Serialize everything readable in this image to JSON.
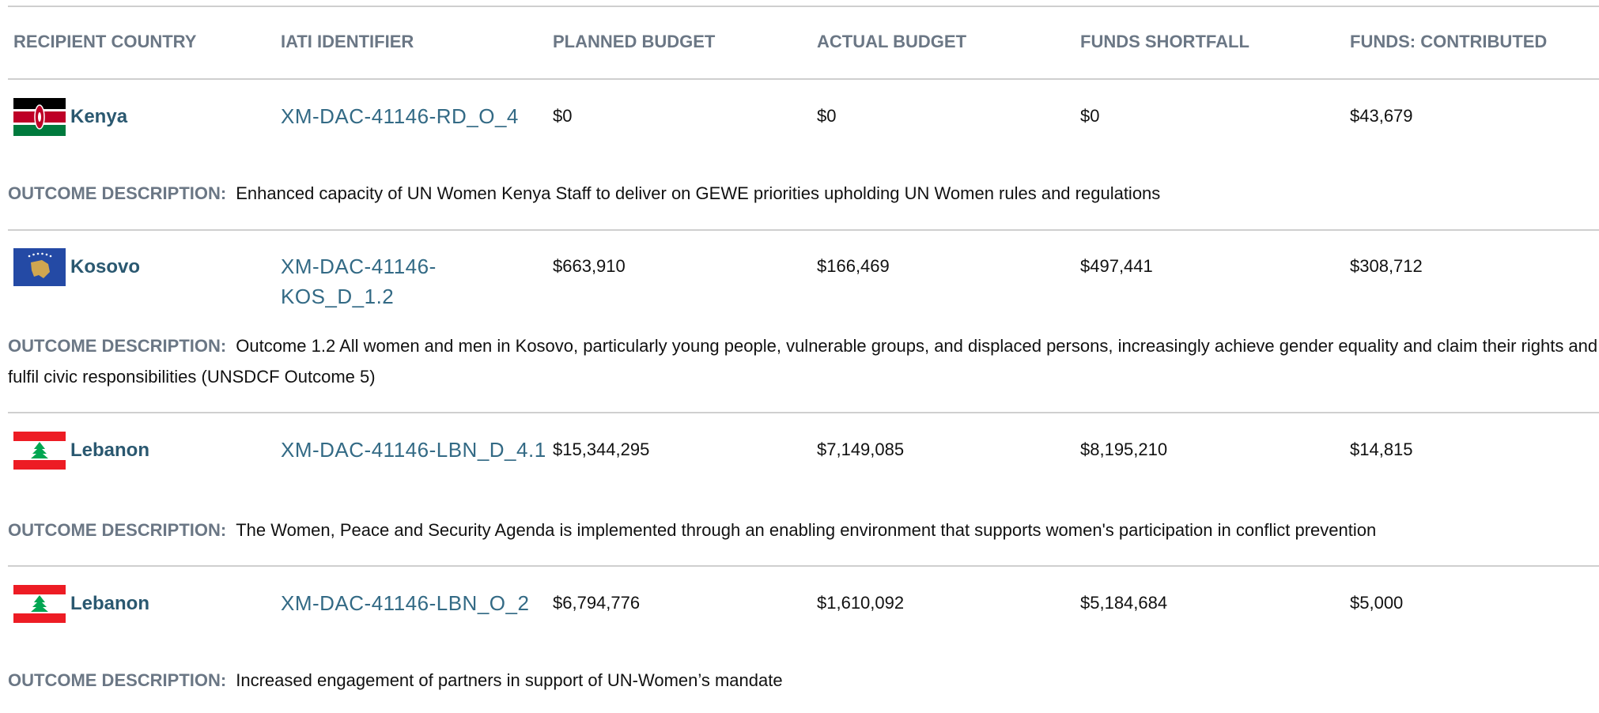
{
  "table": {
    "headers": [
      "RECIPIENT COUNTRY",
      "IATI IDENTIFIER",
      "PLANNED BUDGET",
      "ACTUAL BUDGET",
      "FUNDS SHORTFALL",
      "FUNDS: CONTRIBUTED"
    ],
    "outcome_label": "OUTCOME DESCRIPTION:",
    "rows": [
      {
        "country": "Kenya",
        "identifier": "XM-DAC-41146-RD_O_4",
        "planned": "$0",
        "actual": "$0",
        "shortfall": "$0",
        "contributed": "$43,679",
        "outcome": "Enhanced capacity of UN Women Kenya Staff to deliver on GEWE priorities upholding UN Women rules and regulations"
      },
      {
        "country": "Kosovo",
        "identifier": "XM-DAC-41146-KOS_D_1.2",
        "planned": "$663,910",
        "actual": "$166,469",
        "shortfall": "$497,441",
        "contributed": "$308,712",
        "outcome": "Outcome 1.2 All women and men in Kosovo, particularly young people, vulnerable groups, and displaced persons, increasingly achieve gender equality and claim their rights and fulfil civic responsibilities (UNSDCF Outcome 5)"
      },
      {
        "country": "Lebanon",
        "identifier": "XM-DAC-41146-LBN_D_4.1",
        "planned": "$15,344,295",
        "actual": "$7,149,085",
        "shortfall": "$8,195,210",
        "contributed": "$14,815",
        "outcome": "The Women, Peace and Security Agenda is implemented through an enabling environment that supports women's participation in conflict prevention"
      },
      {
        "country": "Lebanon",
        "identifier": "XM-DAC-41146-LBN_O_2",
        "planned": "$6,794,776",
        "actual": "$1,610,092",
        "shortfall": "$5,184,684",
        "contributed": "$5,000",
        "outcome": "Increased engagement of partners in support of UN-Women’s mandate"
      }
    ]
  }
}
